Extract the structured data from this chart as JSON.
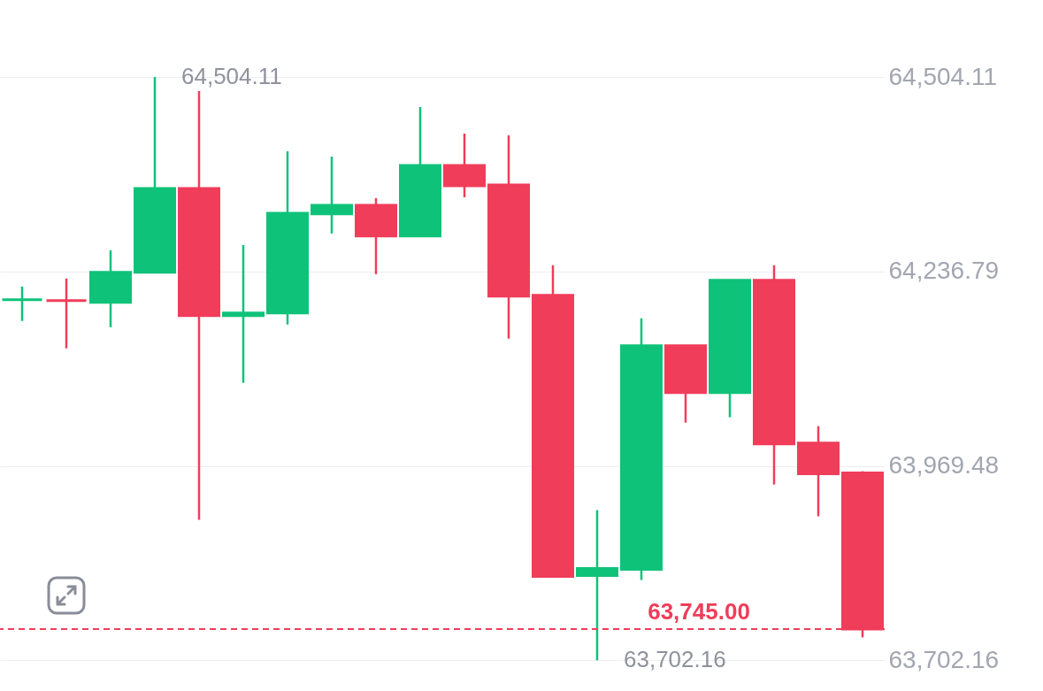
{
  "chart_data": {
    "type": "candlestick",
    "categories": [
      null,
      null,
      null,
      null,
      null,
      null,
      null,
      null,
      null,
      null,
      null,
      null,
      null,
      null,
      null,
      null,
      null,
      null,
      null,
      null
    ],
    "ohlc": [
      [
        64197.9,
        64216.1,
        64168.7,
        64197.9
      ],
      [
        64196.7,
        64227.1,
        64131.1,
        64196.7
      ],
      [
        64194.2,
        64265.9,
        64160.2,
        64235.6
      ],
      [
        64235.6,
        64504.11,
        64235.6,
        64351.0
      ],
      [
        64351.0,
        64484.7,
        63895.3,
        64176.0
      ],
      [
        64176.0,
        64273.2,
        64083.7,
        64179.7
      ],
      [
        64179.7,
        64402.0,
        64163.9,
        64317.0
      ],
      [
        64315.8,
        64394.7,
        64289.0,
        64327.9
      ],
      [
        64327.9,
        64337.6,
        64233.1,
        64285.4
      ],
      [
        64285.4,
        64462.8,
        64285.4,
        64382.6
      ],
      [
        64382.6,
        64426.3,
        64338.8,
        64354.6
      ],
      [
        64355.9,
        64423.9,
        64144.4,
        64202.8
      ],
      [
        64204.0,
        64245.3,
        63817.6,
        63817.6
      ],
      [
        63818.8,
        63908.7,
        63702.16,
        63828.5
      ],
      [
        63827.3,
        64172.4,
        63812.7,
        64134.7
      ],
      [
        64134.7,
        64134.7,
        64029.0,
        64070.3
      ],
      [
        64070.3,
        64224.6,
        64036.3,
        64224.6
      ],
      [
        64224.6,
        64245.3,
        63943.9,
        63999.8
      ],
      [
        64001.0,
        64024.1,
        63900.2,
        63958.5
      ],
      [
        63959.7,
        63962.2,
        63733.7,
        63745.0
      ]
    ],
    "colors": [
      "#0fc27a",
      "#f03d5a",
      "#0fc27a",
      "#0fc27a",
      "#f03d5a",
      "#0fc27a",
      "#0fc27a",
      "#0fc27a",
      "#f03d5a",
      "#0fc27a",
      "#f03d5a",
      "#f03d5a",
      "#f03d5a",
      "#0fc27a",
      "#0fc27a",
      "#f03d5a",
      "#0fc27a",
      "#f03d5a",
      "#f03d5a",
      "#f03d5a"
    ],
    "ylim": [
      63660,
      64610
    ],
    "yticks": [
      {
        "value": 64504.11,
        "label": "64,504.11"
      },
      {
        "value": 64236.79,
        "label": "64,236.79"
      },
      {
        "value": 63969.48,
        "label": "63,969.48"
      },
      {
        "value": 63702.16,
        "label": "63,702.16"
      }
    ],
    "grid": "y",
    "tick_labels": "y",
    "ref_lines": [
      {
        "axis": "y",
        "value": 63745.0,
        "label": "63,745.00",
        "color": "#f03d5a",
        "line_style": "dashed"
      }
    ],
    "annotations": [
      "64,504.11",
      "63,702.16"
    ]
  }
}
